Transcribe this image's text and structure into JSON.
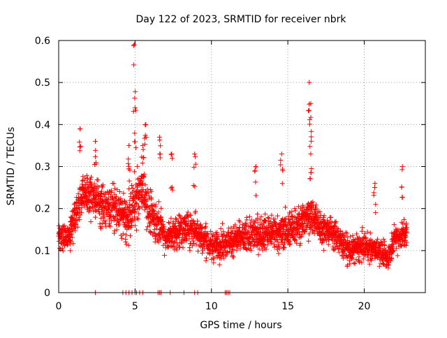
{
  "chart_data": {
    "type": "scatter",
    "title": "Day 122 of 2023, SRMTID for receiver nbrk",
    "xlabel": "GPS time / hours",
    "ylabel": "SRMTID / TECUs",
    "xlim": [
      0,
      24
    ],
    "ylim": [
      0,
      0.6
    ],
    "x_ticks": [
      0,
      5,
      10,
      15,
      20
    ],
    "x_tick_labels": [
      "0",
      "5",
      "10",
      "15",
      "20"
    ],
    "y_ticks": [
      0,
      0.1,
      0.2,
      0.3,
      0.4,
      0.5,
      0.6
    ],
    "y_tick_labels": [
      "0",
      "0.1",
      "0.2",
      "0.3",
      "0.4",
      "0.5",
      "0.6"
    ],
    "grid": true,
    "marker": "plus",
    "color": "#ff0000",
    "data_coverage_hours": [
      0,
      22.8
    ],
    "zero_value_times": [
      2.4,
      4.2,
      4.4,
      4.6,
      4.8,
      5.0,
      5.1,
      5.3,
      5.5,
      6.5,
      6.6,
      6.7,
      7.3,
      8.2,
      8.9,
      9.1,
      10.9,
      11.0,
      11.1,
      11.2
    ],
    "series": [
      {
        "name": "SRMTID",
        "profile": [
          {
            "t": 0.0,
            "median": 0.14,
            "spread": 0.03
          },
          {
            "t": 0.5,
            "median": 0.13,
            "spread": 0.04
          },
          {
            "t": 1.0,
            "median": 0.17,
            "spread": 0.05
          },
          {
            "t": 1.5,
            "median": 0.23,
            "spread": 0.06
          },
          {
            "t": 2.0,
            "median": 0.24,
            "spread": 0.06
          },
          {
            "t": 2.5,
            "median": 0.22,
            "spread": 0.06
          },
          {
            "t": 3.0,
            "median": 0.2,
            "spread": 0.06
          },
          {
            "t": 3.5,
            "median": 0.21,
            "spread": 0.06
          },
          {
            "t": 4.0,
            "median": 0.19,
            "spread": 0.06
          },
          {
            "t": 4.5,
            "median": 0.17,
            "spread": 0.07
          },
          {
            "t": 5.0,
            "median": 0.22,
            "spread": 0.08
          },
          {
            "t": 5.5,
            "median": 0.25,
            "spread": 0.08
          },
          {
            "t": 6.0,
            "median": 0.18,
            "spread": 0.06
          },
          {
            "t": 6.5,
            "median": 0.17,
            "spread": 0.06
          },
          {
            "t": 7.0,
            "median": 0.13,
            "spread": 0.04
          },
          {
            "t": 8.0,
            "median": 0.15,
            "spread": 0.05
          },
          {
            "t": 9.0,
            "median": 0.15,
            "spread": 0.05
          },
          {
            "t": 10.0,
            "median": 0.11,
            "spread": 0.04
          },
          {
            "t": 11.0,
            "median": 0.12,
            "spread": 0.04
          },
          {
            "t": 12.0,
            "median": 0.13,
            "spread": 0.04
          },
          {
            "t": 13.0,
            "median": 0.14,
            "spread": 0.05
          },
          {
            "t": 14.0,
            "median": 0.14,
            "spread": 0.05
          },
          {
            "t": 15.0,
            "median": 0.15,
            "spread": 0.05
          },
          {
            "t": 16.0,
            "median": 0.17,
            "spread": 0.05
          },
          {
            "t": 16.5,
            "median": 0.19,
            "spread": 0.06
          },
          {
            "t": 17.0,
            "median": 0.16,
            "spread": 0.05
          },
          {
            "t": 18.0,
            "median": 0.14,
            "spread": 0.04
          },
          {
            "t": 19.0,
            "median": 0.1,
            "spread": 0.04
          },
          {
            "t": 20.0,
            "median": 0.11,
            "spread": 0.04
          },
          {
            "t": 21.0,
            "median": 0.1,
            "spread": 0.04
          },
          {
            "t": 21.5,
            "median": 0.08,
            "spread": 0.03
          },
          {
            "t": 22.0,
            "median": 0.13,
            "spread": 0.04
          },
          {
            "t": 22.8,
            "median": 0.14,
            "spread": 0.04
          }
        ],
        "peaks": [
          {
            "x": 1.4,
            "y": 0.39
          },
          {
            "x": 2.4,
            "y": 0.36
          },
          {
            "x": 4.6,
            "y": 0.35
          },
          {
            "x": 4.95,
            "y": 0.59
          },
          {
            "x": 5.0,
            "y": 0.44
          },
          {
            "x": 5.5,
            "y": 0.35
          },
          {
            "x": 5.7,
            "y": 0.4
          },
          {
            "x": 6.6,
            "y": 0.37
          },
          {
            "x": 7.4,
            "y": 0.33
          },
          {
            "x": 8.9,
            "y": 0.33
          },
          {
            "x": 12.9,
            "y": 0.3
          },
          {
            "x": 14.6,
            "y": 0.33
          },
          {
            "x": 16.4,
            "y": 0.5
          },
          {
            "x": 16.5,
            "y": 0.45
          },
          {
            "x": 16.5,
            "y": 0.33
          },
          {
            "x": 20.7,
            "y": 0.26
          },
          {
            "x": 22.5,
            "y": 0.3
          }
        ]
      }
    ]
  }
}
